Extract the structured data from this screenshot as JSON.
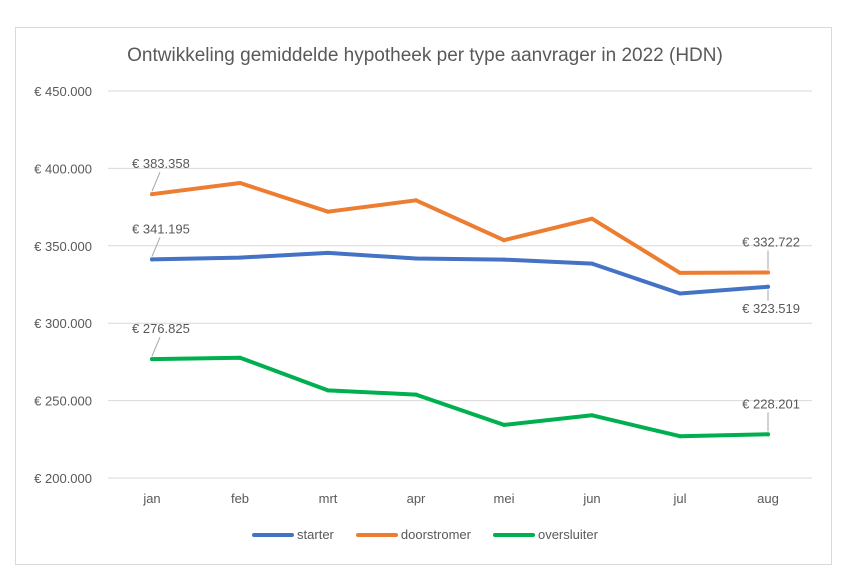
{
  "chart_data": {
    "type": "line",
    "title": "Ontwikkeling gemiddelde hypotheek per type aanvrager in 2022 (HDN)",
    "xlabel": "",
    "ylabel": "",
    "categories": [
      "jan",
      "feb",
      "mrt",
      "apr",
      "mei",
      "jun",
      "jul",
      "aug"
    ],
    "ylim": [
      200000,
      450000
    ],
    "yticks": [
      200000,
      250000,
      300000,
      350000,
      400000,
      450000
    ],
    "ytick_labels": [
      "€ 200.000",
      "€ 250.000",
      "€ 300.000",
      "€ 350.000",
      "€ 400.000",
      "€ 450.000"
    ],
    "grid": true,
    "legend": "bottom",
    "series": [
      {
        "name": "starter",
        "color": "#4472c4",
        "values": [
          341195,
          342400,
          345400,
          341800,
          341100,
          338500,
          319200,
          323519
        ],
        "labels": [
          {
            "index": 0,
            "text": "€ 341.195"
          },
          {
            "index": 7,
            "text": "€ 323.519"
          }
        ]
      },
      {
        "name": "doorstromer",
        "color": "#ed7d31",
        "values": [
          383358,
          390600,
          372000,
          379400,
          353600,
          367500,
          332500,
          332722
        ],
        "labels": [
          {
            "index": 0,
            "text": "€ 383.358"
          },
          {
            "index": 7,
            "text": "€ 332.722"
          }
        ]
      },
      {
        "name": "oversluiter",
        "color": "#00b050",
        "values": [
          276825,
          277700,
          256600,
          253900,
          234300,
          240500,
          227000,
          228201
        ],
        "labels": [
          {
            "index": 0,
            "text": "€ 276.825"
          },
          {
            "index": 7,
            "text": "€ 228.201"
          }
        ]
      }
    ]
  }
}
